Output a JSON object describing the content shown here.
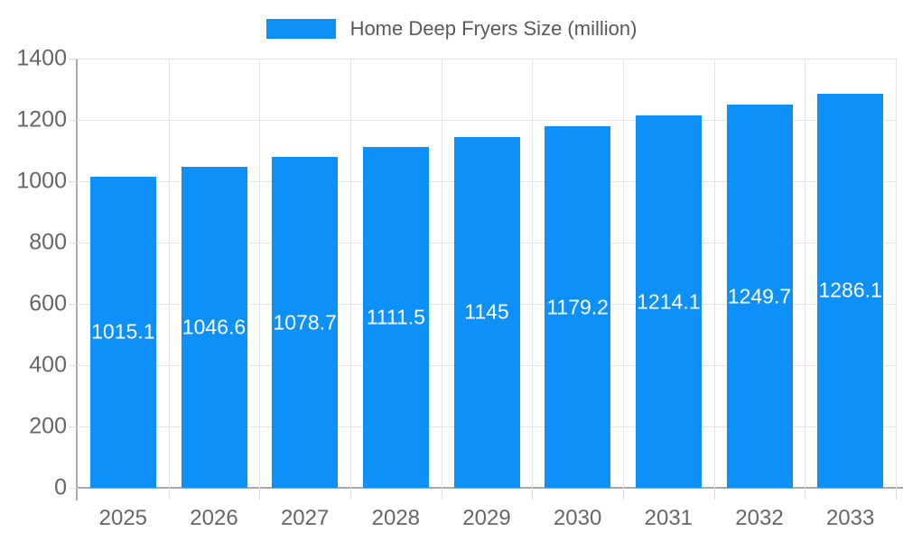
{
  "legend": {
    "label": "Home Deep Fryers Size (million)"
  },
  "colors": {
    "bar": "#0e90f9",
    "bar_label_text": "#ffffff",
    "axis_text": "#666666",
    "title_text": "#595959",
    "gridline": "#e4e4e4",
    "tick": "#dcdcdc",
    "axis_line": "#a9a9a9",
    "background": "#ffffff"
  },
  "chart_data": {
    "type": "bar",
    "title": "Home Deep Fryers Size (million)",
    "series_name": "Home Deep Fryers Size (million)",
    "categories": [
      "2025",
      "2026",
      "2027",
      "2028",
      "2029",
      "2030",
      "2031",
      "2032",
      "2033"
    ],
    "values": [
      1015.1,
      1046.6,
      1078.7,
      1111.5,
      1145,
      1179.2,
      1214.1,
      1249.7,
      1286.1
    ],
    "value_labels": [
      "1015.1",
      "1046.6",
      "1078.7",
      "1111.5",
      "1145",
      "1179.2",
      "1214.1",
      "1249.7",
      "1286.1"
    ],
    "xlabel": "",
    "ylabel": "",
    "ylim": [
      0,
      1400
    ],
    "ytick_step": 200,
    "ytick_labels": [
      "0",
      "200",
      "400",
      "600",
      "800",
      "1000",
      "1200",
      "1400"
    ],
    "grid": true,
    "legend_position": "top",
    "bar_labels_position": "center"
  }
}
